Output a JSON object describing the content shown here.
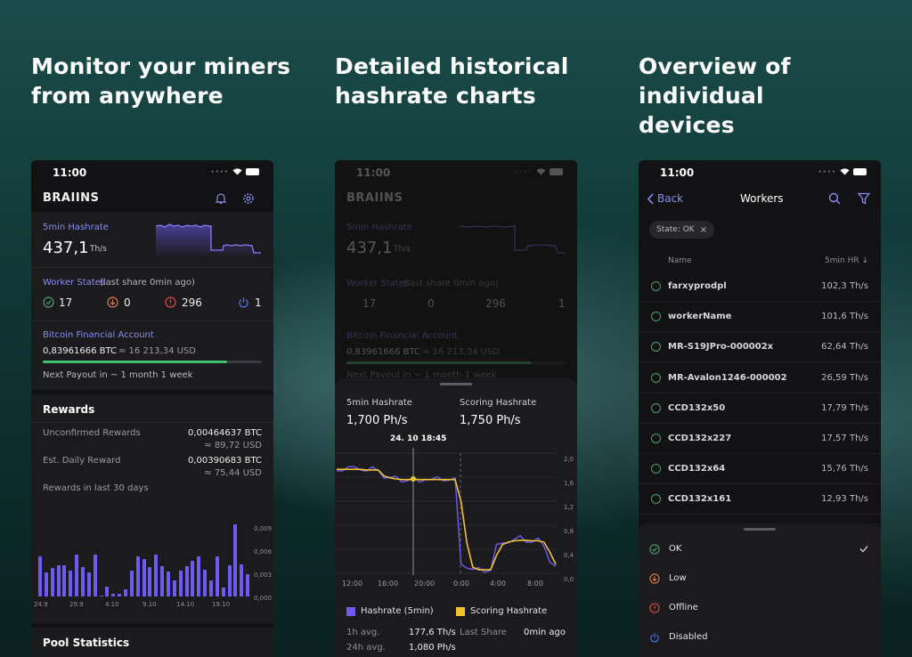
{
  "headings": {
    "col1": [
      "Monitor your miners",
      "from anywhere"
    ],
    "col2": [
      "Detailed historical",
      "hashrate charts"
    ],
    "col3": [
      "Overview of individual",
      "devices"
    ]
  },
  "status_time": "11:00",
  "app_logo": "BRAIINS",
  "icons": [
    "bell-icon",
    "gear-icon",
    "back-chevron-icon",
    "search-icon",
    "filter-icon",
    "check-circle-icon",
    "down-arrow-circle-icon",
    "alert-circle-icon",
    "power-icon",
    "checkmark-icon"
  ],
  "colors": {
    "accent": "#8b8bf2",
    "ok": "#4aa06a",
    "low": "#e07a4a",
    "offline": "#e04646",
    "disabled": "#4a7bff",
    "hashrate": "#6f5af2",
    "scoring": "#f2c12e",
    "progress": "#3fbf6a"
  },
  "dashboard": {
    "hashrate_label": "5min Hashrate",
    "hashrate_value": "437,1",
    "hashrate_unit": "Th/s",
    "worker_states_label": "Worker States",
    "worker_states_sub": "(last share 0min ago)",
    "states": {
      "ok": "17",
      "low": "0",
      "offline": "296",
      "disabled": "1"
    },
    "account_label": "Bitcoin Financial Account",
    "balance": "0,83961666 BTC",
    "balance_usd": "≈ 16 213,34 USD",
    "payout_progress": 0.84,
    "next_payout": "Next Payout in ~ 1 month 1 week",
    "rewards_title": "Rewards",
    "unconfirmed_label": "Unconfirmed Rewards",
    "unconfirmed_btc": "0,00464637 BTC",
    "unconfirmed_usd": "≈ 89,72 USD",
    "daily_label": "Est. Daily Reward",
    "daily_btc": "0,00390683 BTC",
    "daily_usd": "≈ 75,44 USD",
    "last30_label": "Rewards in last 30 days",
    "pool_title": "Pool Statistics"
  },
  "rewards_chart": {
    "type": "bar",
    "y_ticks": [
      "0,009",
      "0,006",
      "0,003",
      "0,000"
    ],
    "x_ticks": [
      "24.9",
      "29.9",
      "4.10",
      "9.10",
      "14.10",
      "19.10"
    ],
    "values": [
      0.0058,
      0.0035,
      0.0042,
      0.0045,
      0.0045,
      0.0038,
      0.0061,
      0.0043,
      0.0035,
      0.0061,
      0.0001,
      0.0014,
      0.0004,
      0.0004,
      0.001,
      0.0038,
      0.0058,
      0.0055,
      0.0043,
      0.0061,
      0.0044,
      0.0036,
      0.0023,
      0.0037,
      0.0044,
      0.0052,
      0.0058,
      0.0039,
      0.0023,
      0.0058,
      0.0013,
      0.0045,
      0.0105,
      0.0047,
      0.0032
    ]
  },
  "chart_screen": {
    "h1_label": "5min Hashrate",
    "h1_value": "1,700 Ph/s",
    "h2_label": "Scoring Hashrate",
    "h2_value": "1,750 Ph/s",
    "cursor_label": "24. 10 18:45",
    "y_ticks": [
      "2,0",
      "1,6",
      "1,2",
      "0,8",
      "0,4",
      "0,0"
    ],
    "x_ticks": [
      "12:00",
      "16:00",
      "20:00",
      "0:00",
      "4:00",
      "8:00"
    ],
    "legend1": "Hashrate (5min)",
    "legend2": "Scoring Hashrate",
    "avg1_label": "1h avg.",
    "avg1_value": "177,6 Th/s",
    "avg24_label": "24h avg.",
    "avg24_value": "1,080 Ph/s",
    "last_share_label": "Last Share",
    "last_share_value": "0min ago"
  },
  "line_chart": {
    "type": "line",
    "ylim": [
      0,
      2
    ],
    "series": [
      {
        "name": "Hashrate (5min)",
        "values": [
          1.75,
          1.72,
          1.76,
          1.73,
          1.75,
          1.7,
          1.74,
          1.76,
          1.6,
          1.58,
          1.57,
          1.55,
          1.54,
          1.58,
          1.56,
          1.57,
          1.55,
          1.56,
          1.57,
          1.55,
          1.56,
          0.2,
          0.1,
          0.05,
          0.05,
          0.05,
          0.05,
          0.45,
          0.55,
          0.52,
          0.55,
          0.58,
          0.55,
          0.52,
          0.56,
          0.5,
          0.2,
          0.1
        ]
      },
      {
        "name": "Scoring Hashrate",
        "values": [
          1.73,
          1.73,
          1.73,
          1.73,
          1.73,
          1.72,
          1.72,
          1.72,
          1.62,
          1.59,
          1.57,
          1.56,
          1.56,
          1.56,
          1.56,
          1.56,
          1.56,
          1.56,
          1.56,
          1.56,
          1.56,
          1.2,
          0.5,
          0.1,
          0.06,
          0.06,
          0.06,
          0.3,
          0.48,
          0.52,
          0.54,
          0.55,
          0.55,
          0.54,
          0.54,
          0.52,
          0.35,
          0.15
        ]
      }
    ]
  },
  "workers": {
    "back_label": "Back",
    "title": "Workers",
    "filter_chip": "State: OK",
    "chip_close": "×",
    "col_name": "Name",
    "col_hr": "5min HR ↓",
    "rows": [
      {
        "name": "farxyprodpl",
        "hr": "102,3 Th/s"
      },
      {
        "name": "workerName",
        "hr": "101,6 Th/s"
      },
      {
        "name": "MR-S19JPro-000002x",
        "hr": "62,64 Th/s"
      },
      {
        "name": "MR-Avalon1246-000002",
        "hr": "26,59 Th/s"
      },
      {
        "name": "CCD132x50",
        "hr": "17,79 Th/s"
      },
      {
        "name": "CCD132x227",
        "hr": "17,57 Th/s"
      },
      {
        "name": "CCD132x64",
        "hr": "15,76 Th/s"
      },
      {
        "name": "CCD132x161",
        "hr": "12,93 Th/s"
      }
    ],
    "states": [
      {
        "label": "OK"
      },
      {
        "label": "Low"
      },
      {
        "label": "Offline"
      },
      {
        "label": "Disabled"
      }
    ]
  }
}
